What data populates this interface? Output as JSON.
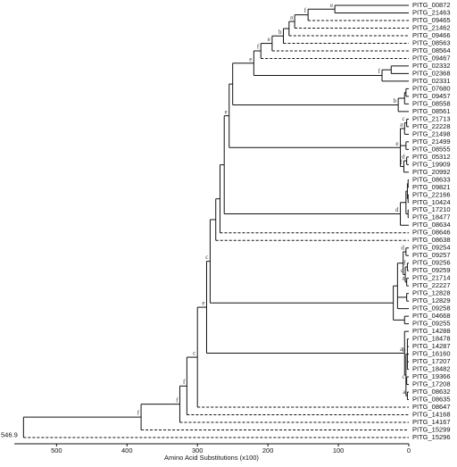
{
  "chart_data": {
    "type": "dendrogram",
    "xlabel": "Amino Acid Substitutions (x100)",
    "xlim": [
      560,
      0
    ],
    "xticks": [
      500,
      400,
      300,
      200,
      100,
      0
    ],
    "tree": {
      "height": 546.9,
      "children": [
        {
          "height": 380,
          "label": "f",
          "children": [
            {
              "height": 325,
              "label": "f",
              "children": [
                {
                  "height": 315,
                  "label": "f",
                  "children": [
                    {
                      "height": 300,
                      "label": "c",
                      "children": [
                        {
                          "height": 287,
                          "label": "e",
                          "children": [
                            {
                              "height": 282,
                              "label": "c",
                              "children": [
                                {
                                  "height": 274,
                                  "children": [
                                    {
                                      "height": 268,
                                      "children": [
                                        {
                                          "height": 262,
                                          "children": [
                                            {
                                              "height": 255,
                                              "label": "e",
                                              "children": [
                                                {
                                                  "height": 250,
                                                  "children": [
                                                    {
                                                      "height": 220,
                                                      "label": "e",
                                                      "children": [
                                                        {
                                                          "height": 210,
                                                          "label": "f",
                                                          "children": [
                                                            {
                                                              "height": 194,
                                                              "label": "e",
                                                              "children": [
                                                                {
                                                                  "height": 178,
                                                                  "label": "b",
                                                                  "children": [
                                                                    {
                                                                      "height": 170,
                                                                      "children": [
                                                                        {
                                                                          "height": 162,
                                                                          "label": "a",
                                                                          "children": [
                                                                            {
                                                                              "height": 143,
                                                                              "label": "f",
                                                                              "children": [
                                                                                {
                                                                                  "height": 105,
                                                                                  "label": "e",
                                                                                  "children": [
                                                                                    "PITG_00872",
                                                                                    "PITG_21463"
                                                                                  ]
                                                                                },
                                                                                "PITG_09465"
                                                                              ]
                                                                            },
                                                                            "PITG_21462"
                                                                          ]
                                                                        },
                                                                        "PITG_09466"
                                                                      ]
                                                                    },
                                                                    "PITG_08563"
                                                                  ]
                                                                },
                                                                "PITG_08564"
                                                              ]
                                                            },
                                                            "PITG_09467"
                                                          ]
                                                        },
                                                        {
                                                          "height": 38,
                                                          "label": "f",
                                                          "children": [
                                                            {
                                                              "height": 25,
                                                              "children": [
                                                                "PITG_02332",
                                                                "PITG_02368"
                                                              ]
                                                            },
                                                            "PITG_02331"
                                                          ]
                                                        }
                                                      ]
                                                    },
                                                    {
                                                      "height": 15,
                                                      "label": "b",
                                                      "children": [
                                                        {
                                                          "height": 6,
                                                          "children": [
                                                            {
                                                              "height": 4,
                                                              "children": [
                                                                "PITG_07680",
                                                                "PITG_09457"
                                                              ]
                                                            },
                                                            "PITG_08558"
                                                          ]
                                                        },
                                                        "PITG_08561"
                                                      ]
                                                    }
                                                  ]
                                                },
                                                {
                                                  "height": 12,
                                                  "label": "e",
                                                  "children": [
                                                    {
                                                      "height": 6,
                                                      "label": "a",
                                                      "children": [
                                                        {
                                                          "height": 3,
                                                          "label": "c",
                                                          "children": [
                                                            "PITG_21713",
                                                            "PITG_22228"
                                                          ]
                                                        },
                                                        "PITG_21498"
                                                      ]
                                                    },
                                                    {
                                                      "height": 4,
                                                      "children": [
                                                        "PITG_21499",
                                                        "PITG_08555"
                                                      ]
                                                    },
                                                    {
                                                      "height": 7,
                                                      "label": "f",
                                                      "children": [
                                                        {
                                                          "height": 3,
                                                          "label": "d",
                                                          "children": [
                                                            "PITG_05312",
                                                            "PITG_19909"
                                                          ]
                                                        },
                                                        "PITG_20992"
                                                      ]
                                                    }
                                                  ]
                                                }
                                              ]
                                            },
                                            {
                                              "height": 12,
                                              "label": "d",
                                              "children": [
                                                {
                                                  "height": 4,
                                                  "children": [
                                                    {
                                                      "height": 2,
                                                      "children": [
                                                        {
                                                          "height": 1,
                                                          "children": [
                                                            "PITG_08633",
                                                            "PITG_09821"
                                                          ]
                                                        },
                                                        {
                                                          "height": 1,
                                                          "children": [
                                                            "PITG_22166",
                                                            "PITG_10424"
                                                          ]
                                                        }
                                                      ]
                                                    },
                                                    {
                                                      "height": 1,
                                                      "children": [
                                                        "PITG_17210",
                                                        "PITG_18477"
                                                      ]
                                                    }
                                                  ]
                                                },
                                                "PITG_08634"
                                              ]
                                            }
                                          ]
                                        },
                                        "PITG_08646"
                                      ]
                                    },
                                    "PITG_08638"
                                  ]
                                },
                                {
                                  "height": 22,
                                  "children": [
                                    {
                                      "height": 16,
                                      "children": [
                                        {
                                          "height": 8,
                                          "children": [
                                            {
                                              "height": 4,
                                              "label": "d",
                                              "children": [
                                                "PITG_09254",
                                                "PITG_09257"
                                              ]
                                            },
                                            {
                                              "height": 5,
                                              "label": "c",
                                              "children": [
                                                {
                                                  "height": 2,
                                                  "label": "f",
                                                  "children": [
                                                    "PITG_09256",
                                                    "PITG_09259"
                                                  ]
                                                },
                                                {
                                                  "height": 3,
                                                  "label": "a",
                                                  "children": [
                                                    "PITG_21714",
                                                    "PITG_22227"
                                                  ]
                                                }
                                              ]
                                            }
                                          ]
                                        },
                                        {
                                          "height": 3,
                                          "children": [
                                            "PITG_12828",
                                            "PITG_12829"
                                          ]
                                        },
                                        "PITG_09258"
                                      ]
                                    },
                                    {
                                      "height": 6,
                                      "children": [
                                        "PITG_04668",
                                        "PITG_09255"
                                      ]
                                    }
                                  ]
                                }
                              ]
                            },
                            {
                              "height": 6,
                              "label": "a",
                              "children": [
                                "PITG_14288",
                                {
                                  "height": 4,
                                  "children": [
                                    {
                                      "height": 2,
                                      "label": "b",
                                      "children": [
                                        "PITG_18478",
                                        "PITG_14287",
                                        "PITG_16160",
                                        "PITG_17207",
                                        "PITG_18482"
                                      ]
                                    },
                                    {
                                      "height": 3,
                                      "label": "c",
                                      "children": [
                                        "PITG_19366",
                                        "PITG_17208"
                                      ]
                                    },
                                    {
                                      "height": 2,
                                      "label": "a",
                                      "children": [
                                        "PITG_08632",
                                        "PITG_08635"
                                      ]
                                    }
                                  ]
                                }
                              ]
                            }
                          ]
                        },
                        "PITG_08647"
                      ]
                    },
                    "PITG_14168"
                  ]
                },
                "PITG_14167"
              ]
            },
            "PITG_15299"
          ]
        },
        "PITG_15296"
      ]
    }
  }
}
